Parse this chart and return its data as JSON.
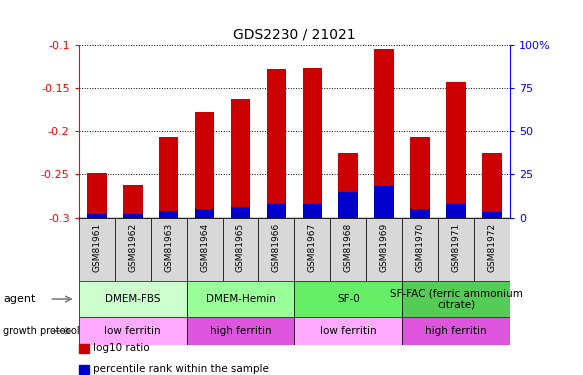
{
  "title": "GDS2230 / 21021",
  "samples": [
    "GSM81961",
    "GSM81962",
    "GSM81963",
    "GSM81964",
    "GSM81965",
    "GSM81966",
    "GSM81967",
    "GSM81968",
    "GSM81969",
    "GSM81970",
    "GSM81971",
    "GSM81972"
  ],
  "log10_ratio": [
    -0.248,
    -0.262,
    -0.207,
    -0.178,
    -0.163,
    -0.128,
    -0.127,
    -0.225,
    -0.105,
    -0.207,
    -0.143,
    -0.225
  ],
  "percentile_rank": [
    2,
    2,
    4,
    5,
    6,
    8,
    8,
    15,
    18,
    5,
    8,
    3
  ],
  "ylim_left": [
    -0.3,
    -0.1
  ],
  "ylim_right": [
    0,
    100
  ],
  "yticks_left": [
    -0.3,
    -0.25,
    -0.2,
    -0.15,
    -0.1
  ],
  "yticks_right": [
    0,
    25,
    50,
    75,
    100
  ],
  "ytick_labels_left": [
    "-0.3",
    "-0.25",
    "-0.2",
    "-0.15",
    "-0.1"
  ],
  "ytick_labels_right": [
    "0",
    "25",
    "50",
    "75",
    "100%"
  ],
  "bar_color": "#cc0000",
  "percentile_color": "#0000cc",
  "background_color": "#ffffff",
  "agent_groups": [
    {
      "label": "DMEM-FBS",
      "start": 0,
      "end": 3,
      "color": "#ccffcc"
    },
    {
      "label": "DMEM-Hemin",
      "start": 3,
      "end": 6,
      "color": "#99ff99"
    },
    {
      "label": "SF-0",
      "start": 6,
      "end": 9,
      "color": "#66ee66"
    },
    {
      "label": "SF-FAC (ferric ammonium\ncitrate)",
      "start": 9,
      "end": 12,
      "color": "#55cc55"
    }
  ],
  "growth_groups": [
    {
      "label": "low ferritin",
      "start": 0,
      "end": 3,
      "color": "#ffaaff"
    },
    {
      "label": "high ferritin",
      "start": 3,
      "end": 6,
      "color": "#dd55dd"
    },
    {
      "label": "low ferritin",
      "start": 6,
      "end": 9,
      "color": "#ffaaff"
    },
    {
      "label": "high ferritin",
      "start": 9,
      "end": 12,
      "color": "#dd55dd"
    }
  ],
  "legend_items": [
    {
      "label": "log10 ratio",
      "color": "#cc0000"
    },
    {
      "label": "percentile rank within the sample",
      "color": "#0000cc"
    }
  ],
  "title_fontsize": 10,
  "tick_label_fontsize": 8,
  "bar_width": 0.55,
  "sample_box_color": "#d8d8d8",
  "left_label_color": "#888888"
}
